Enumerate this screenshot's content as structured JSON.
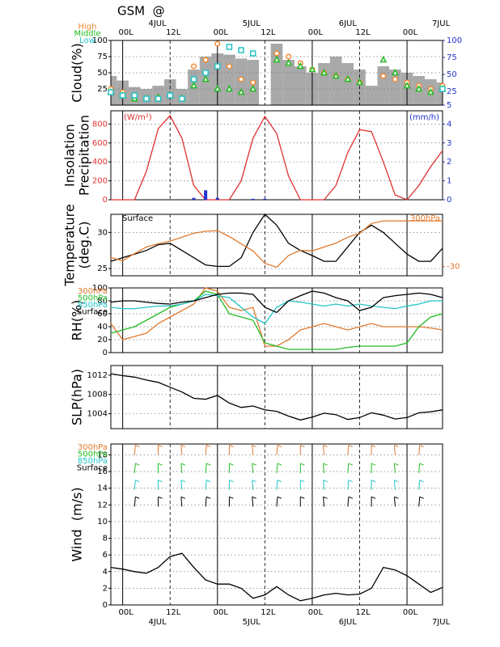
{
  "title": "GSM  @",
  "time": {
    "x": [
      -3,
      0,
      3,
      6,
      9,
      12,
      15,
      18,
      21,
      24,
      27,
      30,
      33,
      36,
      39,
      42,
      45,
      48,
      51,
      54,
      57,
      60,
      63,
      66,
      69,
      72,
      75,
      78,
      81
    ],
    "xlim": [
      -3,
      81
    ],
    "xticks": [
      {
        "value": 0,
        "label": "00L"
      },
      {
        "value": 12,
        "label": "12L"
      },
      {
        "value": 24,
        "label": "00L"
      },
      {
        "value": 36,
        "label": "12L"
      },
      {
        "value": 48,
        "label": "00L"
      },
      {
        "value": 60,
        "label": "12L"
      },
      {
        "value": 72,
        "label": "00L"
      }
    ],
    "dates": [
      {
        "value": 8.8,
        "label": "4JUL"
      },
      {
        "value": 32.6,
        "label": "5JUL"
      },
      {
        "value": 57,
        "label": "6JUL"
      },
      {
        "value": 80.6,
        "label": "7JUL"
      }
    ]
  },
  "chart_data": [
    {
      "type": "bar",
      "ylabel": [
        "Cloud(%)"
      ],
      "legend": "above-left",
      "values": [
        45,
        38,
        28,
        25,
        30,
        40,
        25,
        55,
        75,
        80,
        78,
        72,
        70,
        0,
        95,
        70,
        60,
        50,
        65,
        75,
        65,
        55,
        30,
        60,
        55,
        50,
        45,
        40,
        35
      ],
      "color": "#a9a9a9",
      "ylim": [
        0,
        100
      ],
      "yticks": [
        25,
        50,
        75,
        100
      ],
      "y2lim": [
        5,
        100
      ],
      "y2ticks": [
        5,
        25,
        50,
        75,
        100
      ],
      "y2color": "#2233cc",
      "series": [
        {
          "name": "High",
          "color": "#f08a30",
          "marker": "circle",
          "values": [
            25,
            20,
            15,
            10,
            12,
            15,
            10,
            60,
            70,
            95,
            60,
            40,
            35,
            null,
            80,
            75,
            65,
            55,
            50,
            45,
            40,
            35,
            null,
            45,
            40,
            35,
            30,
            25,
            30
          ]
        },
        {
          "name": "Middle",
          "color": "#22bb22",
          "marker": "triangle",
          "values": [
            20,
            15,
            10,
            10,
            12,
            15,
            10,
            30,
            40,
            25,
            25,
            20,
            25,
            null,
            70,
            65,
            60,
            55,
            50,
            45,
            40,
            35,
            null,
            70,
            50,
            30,
            25,
            20,
            25
          ]
        },
        {
          "name": "Low",
          "color": "#22c4c4",
          "marker": "square",
          "values": [
            20,
            15,
            15,
            10,
            10,
            15,
            10,
            40,
            50,
            60,
            90,
            85,
            80,
            null,
            null,
            null,
            null,
            null,
            null,
            null,
            null,
            null,
            null,
            null,
            null,
            null,
            null,
            null,
            25
          ]
        }
      ]
    },
    {
      "type": "line",
      "ylabel": [
        "Insolation",
        "Precipitation"
      ],
      "y_unit": "(W/m²)",
      "y2_unit": "(mm/h)",
      "ylim": [
        0,
        940
      ],
      "yticks": [
        0,
        200,
        400,
        600,
        800
      ],
      "ycolor": "#e03030",
      "y2lim": [
        0,
        4.7
      ],
      "y2ticks": [
        0,
        1,
        2,
        3,
        4
      ],
      "y2color": "#2233cc",
      "series": [
        {
          "color": "#e03030",
          "values": [
            0,
            0,
            0,
            300,
            750,
            890,
            650,
            150,
            0,
            0,
            0,
            200,
            650,
            880,
            700,
            250,
            0,
            0,
            0,
            150,
            500,
            740,
            720,
            400,
            50,
            0,
            150,
            350,
            520
          ]
        },
        {
          "color": "#2233cc",
          "axis": "y2",
          "style": "bar",
          "values": [
            0,
            0,
            0,
            0,
            0,
            0,
            0,
            0.1,
            0.5,
            0.1,
            0,
            0,
            0.05,
            0.05,
            0,
            0,
            0,
            0,
            0,
            0,
            0,
            0,
            0,
            0,
            0,
            0,
            0,
            0,
            0
          ]
        }
      ]
    },
    {
      "type": "line",
      "ylabel": [
        "Temperature",
        "(deg.C)"
      ],
      "legend": "corners",
      "ylim": [
        24,
        32.5
      ],
      "yticks": [
        25,
        30
      ],
      "y2lim": [
        -31.4,
        -22
      ],
      "y2ticks": [
        -30
      ],
      "y2color": "#e07a30",
      "series": [
        {
          "name": "Surface",
          "color": "#000000",
          "values": [
            26,
            26.5,
            27,
            27.5,
            28.3,
            28.5,
            27.5,
            26.5,
            25.5,
            25.3,
            25.3,
            26.5,
            30,
            32.5,
            31,
            28.5,
            27.5,
            26.8,
            26,
            26,
            28,
            30,
            31,
            30,
            28.5,
            27,
            26,
            26,
            27.8
          ]
        },
        {
          "name": "300hPa",
          "color": "#e07a30",
          "axis": "y2",
          "values": [
            -28.6,
            -29.1,
            -28,
            -27,
            -26.5,
            -26.1,
            -25.5,
            -24.9,
            -24.6,
            -24.5,
            -25.4,
            -26.5,
            -27.6,
            -29.5,
            -30.1,
            -28.3,
            -27.5,
            -27.6,
            -27,
            -26.4,
            -25.5,
            -24.9,
            -23.4,
            -23,
            -23,
            -23,
            -23,
            -23,
            -23
          ]
        }
      ]
    },
    {
      "type": "line",
      "ylabel": [
        "RH(%)"
      ],
      "legend": "left",
      "ylim": [
        0,
        100
      ],
      "yticks": [
        0,
        20,
        40,
        60,
        80,
        100
      ],
      "series": [
        {
          "name": "300hPa",
          "color": "#e07a30",
          "values": [
            45,
            20,
            25,
            30,
            45,
            55,
            65,
            75,
            100,
            95,
            70,
            65,
            70,
            10,
            10,
            20,
            35,
            40,
            45,
            40,
            35,
            40,
            45,
            40,
            40,
            40,
            40,
            38,
            35
          ]
        },
        {
          "name": "500hPa",
          "color": "#22bb22",
          "values": [
            30,
            35,
            40,
            50,
            60,
            70,
            75,
            80,
            95,
            90,
            60,
            55,
            50,
            15,
            10,
            5,
            5,
            5,
            5,
            5,
            8,
            10,
            10,
            10,
            10,
            15,
            40,
            55,
            60
          ]
        },
        {
          "name": "850hPa",
          "color": "#22c4c4",
          "values": [
            70,
            68,
            68,
            70,
            72,
            72,
            75,
            80,
            90,
            88,
            85,
            70,
            55,
            45,
            70,
            80,
            78,
            75,
            72,
            75,
            72,
            75,
            72,
            70,
            68,
            72,
            75,
            80,
            80
          ]
        },
        {
          "name": "Surface",
          "color": "#000000",
          "values": [
            78,
            80,
            80,
            78,
            76,
            75,
            78,
            80,
            85,
            90,
            92,
            92,
            90,
            70,
            62,
            80,
            88,
            95,
            92,
            85,
            80,
            65,
            70,
            85,
            88,
            90,
            92,
            90,
            85
          ]
        }
      ]
    },
    {
      "type": "line",
      "ylabel": [
        "SLP(hPa)"
      ],
      "ylim": [
        1000.9,
        1014
      ],
      "yticks": [
        1004,
        1008,
        1012
      ],
      "series": [
        {
          "color": "#000000",
          "values": [
            1012.3,
            1011.9,
            1011.6,
            1011,
            1010.5,
            1009.5,
            1008.5,
            1007.2,
            1007,
            1007.8,
            1006.2,
            1005.3,
            1005.6,
            1004.8,
            1004.5,
            1003.5,
            1002.7,
            1003.3,
            1004.1,
            1003.8,
            1002.8,
            1003.2,
            1004.2,
            1003.7,
            1002.9,
            1003.2,
            1004.2,
            1004.4,
            1004.8
          ]
        }
      ]
    },
    {
      "type": "line",
      "ylabel": [
        "Wind  (m/s)"
      ],
      "legend": "left",
      "ylim": [
        0,
        19.3
      ],
      "yticks": [
        0,
        2,
        4,
        6,
        8,
        10,
        12,
        14,
        16,
        18
      ],
      "series": [
        {
          "name": "300hPa",
          "color": "#e07a30",
          "barb_y": 18
        },
        {
          "name": "500hPa",
          "color": "#22bb22",
          "barb_y": 15.8
        },
        {
          "name": "850hPa",
          "color": "#22c4c4",
          "barb_y": 13.8
        },
        {
          "name": "Surface",
          "color": "#000000",
          "barb_y": 11.8,
          "values": [
            4.5,
            4.3,
            4,
            3.8,
            4.5,
            5.8,
            6.2,
            4.5,
            3,
            2.5,
            2.5,
            2,
            0.8,
            1.2,
            2.2,
            1.2,
            0.5,
            0.8,
            1.2,
            1.4,
            1.2,
            1.3,
            2,
            4.5,
            4.2,
            3.5,
            2.5,
            1.5,
            2.1
          ]
        }
      ]
    }
  ]
}
